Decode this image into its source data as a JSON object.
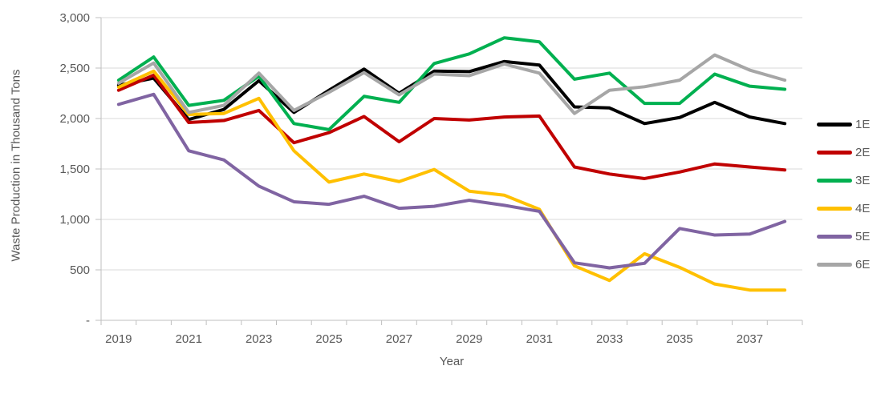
{
  "chart_data": {
    "type": "line",
    "title": "",
    "xlabel": "Year",
    "ylabel": "Waste Production in Thousand Tons",
    "x": [
      2019,
      2020,
      2021,
      2022,
      2023,
      2024,
      2025,
      2026,
      2027,
      2028,
      2029,
      2030,
      2031,
      2032,
      2033,
      2034,
      2035,
      2036,
      2037,
      2038
    ],
    "x_tick_labels": [
      "2019",
      "2021",
      "2023",
      "2025",
      "2027",
      "2029",
      "2031",
      "2033",
      "2035",
      "2037"
    ],
    "y_ticks": [
      0,
      500,
      1000,
      1500,
      2000,
      2500,
      3000
    ],
    "y_tick_labels": [
      "-",
      "500",
      "1,000",
      "1,500",
      "2,000",
      "2,500",
      "3,000"
    ],
    "ylim": [
      0,
      3000
    ],
    "grid": "horizontal",
    "legend_position": "right",
    "series": [
      {
        "name": "1E",
        "color": "#000000",
        "values": [
          2330,
          2400,
          1990,
          2090,
          2375,
          2060,
          2280,
          2490,
          2250,
          2470,
          2465,
          2565,
          2530,
          2115,
          2105,
          1950,
          2010,
          2160,
          2015,
          1950
        ]
      },
      {
        "name": "2E",
        "color": "#C00000",
        "values": [
          2280,
          2430,
          1960,
          1980,
          2080,
          1760,
          1860,
          2020,
          1770,
          2000,
          1985,
          2015,
          2025,
          1520,
          1450,
          1405,
          1470,
          1550,
          1520,
          1490
        ]
      },
      {
        "name": "3E",
        "color": "#00B050",
        "values": [
          2380,
          2610,
          2130,
          2180,
          2420,
          1950,
          1890,
          2220,
          2160,
          2545,
          2640,
          2800,
          2760,
          2390,
          2450,
          2150,
          2150,
          2440,
          2320,
          2290
        ]
      },
      {
        "name": "4E",
        "color": "#FFC000",
        "values": [
          2310,
          2470,
          2040,
          2050,
          2200,
          1680,
          1370,
          1450,
          1375,
          1495,
          1280,
          1240,
          1100,
          540,
          395,
          660,
          525,
          360,
          300,
          300
        ]
      },
      {
        "name": "5E",
        "color": "#8064A2",
        "values": [
          2140,
          2240,
          1680,
          1590,
          1330,
          1175,
          1150,
          1230,
          1110,
          1130,
          1190,
          1140,
          1080,
          570,
          520,
          565,
          910,
          845,
          855,
          980
        ]
      },
      {
        "name": "6E",
        "color": "#A6A6A6",
        "values": [
          2350,
          2550,
          2060,
          2130,
          2450,
          2080,
          2260,
          2455,
          2235,
          2440,
          2425,
          2540,
          2450,
          2050,
          2280,
          2315,
          2380,
          2630,
          2480,
          2380
        ]
      }
    ]
  },
  "styles": {
    "background": "#FFFFFF",
    "axis_text_color": "#595959",
    "gridline_color": "#D9D9D9",
    "axis_line_color": "#BFBFBF"
  }
}
